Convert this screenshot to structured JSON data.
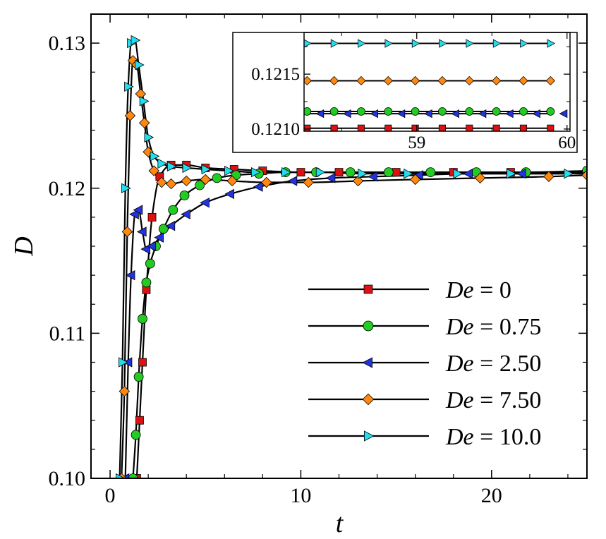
{
  "chart_data": [
    {
      "type": "line",
      "xlabel": "t",
      "ylabel": "D",
      "xlim": [
        -1,
        25
      ],
      "ylim": [
        0.1,
        0.132
      ],
      "xticks": [
        "0",
        "10",
        "20"
      ],
      "xtick_values": [
        0,
        10,
        20
      ],
      "yticks": [
        "0.10",
        "0.11",
        "0.12",
        "0.13"
      ],
      "ytick_values": [
        0.1,
        0.11,
        0.12,
        0.13
      ],
      "grid": false,
      "legend_position": "bottom-right",
      "legend": [
        {
          "prefix": "De",
          "rest": " = 0"
        },
        {
          "prefix": "De",
          "rest": " = 0.75"
        },
        {
          "prefix": "De",
          "rest": " = 2.50"
        },
        {
          "prefix": "De",
          "rest": " = 7.50"
        },
        {
          "prefix": "De",
          "rest": " = 10.0"
        }
      ],
      "series": [
        {
          "name": "De = 0",
          "marker": "square",
          "color": "#dd1111",
          "x": [
            1.4,
            1.55,
            1.7,
            1.9,
            2.2,
            2.6,
            3.2,
            4.0,
            5.0,
            6.5,
            8.0,
            10.0,
            12.0,
            15.0,
            18.0,
            21.0,
            25.0
          ],
          "y": [
            0.1,
            0.104,
            0.108,
            0.113,
            0.118,
            0.1208,
            0.1216,
            0.1216,
            0.1214,
            0.1213,
            0.1212,
            0.1211,
            0.1211,
            0.1211,
            0.1211,
            0.1211,
            0.1211
          ]
        },
        {
          "name": "De = 0.75",
          "marker": "circle",
          "color": "#22cc22",
          "x": [
            1.2,
            1.35,
            1.5,
            1.7,
            1.9,
            2.1,
            2.4,
            2.8,
            3.3,
            3.9,
            4.7,
            5.6,
            6.6,
            7.8,
            9.2,
            10.8,
            12.6,
            14.6,
            16.8,
            19.2,
            21.8,
            25.0
          ],
          "y": [
            0.1,
            0.103,
            0.107,
            0.111,
            0.1135,
            0.1148,
            0.116,
            0.1172,
            0.1185,
            0.1195,
            0.1202,
            0.1207,
            0.1209,
            0.121,
            0.1211,
            0.1211,
            0.1211,
            0.1211,
            0.1211,
            0.1211,
            0.1211,
            0.1212
          ]
        },
        {
          "name": "De = 2.50",
          "marker": "triangle-left",
          "color": "#2233dd",
          "x": [
            0.8,
            0.95,
            1.1,
            1.3,
            1.5,
            1.7,
            1.9,
            2.2,
            2.6,
            3.2,
            4.0,
            5.0,
            6.3,
            7.8,
            9.6,
            11.6,
            13.8,
            16.2,
            18.8,
            21.6,
            25.0
          ],
          "y": [
            0.1,
            0.108,
            0.114,
            0.1182,
            0.1185,
            0.117,
            0.1158,
            0.116,
            0.1166,
            0.1174,
            0.1182,
            0.119,
            0.1196,
            0.1201,
            0.1205,
            0.1207,
            0.1208,
            0.1209,
            0.121,
            0.121,
            0.121
          ]
        },
        {
          "name": "De = 7.50",
          "marker": "diamond",
          "color": "#ff8811",
          "x": [
            0.6,
            0.75,
            0.9,
            1.05,
            1.2,
            1.4,
            1.6,
            1.8,
            2.0,
            2.3,
            2.7,
            3.2,
            4.0,
            5.0,
            6.4,
            8.2,
            10.4,
            13.0,
            16.0,
            19.4,
            23.0,
            25.0
          ],
          "y": [
            0.1,
            0.106,
            0.117,
            0.125,
            0.1288,
            0.1285,
            0.1265,
            0.1245,
            0.1225,
            0.1212,
            0.1204,
            0.1203,
            0.1205,
            0.1206,
            0.1205,
            0.1204,
            0.1204,
            0.1205,
            0.1206,
            0.1207,
            0.1208,
            0.1209
          ]
        },
        {
          "name": "De = 10.0",
          "marker": "triangle-right",
          "color": "#22ddee",
          "x": [
            0.5,
            0.65,
            0.8,
            0.95,
            1.1,
            1.3,
            1.5,
            1.75,
            2.0,
            2.3,
            2.7,
            3.2,
            4.0,
            5.0,
            6.2,
            7.6,
            9.2,
            11.0,
            13.2,
            15.6,
            18.2,
            21.0,
            24.0
          ],
          "y": [
            0.1,
            0.108,
            0.12,
            0.127,
            0.13,
            0.1302,
            0.1285,
            0.126,
            0.1235,
            0.1222,
            0.1217,
            0.1215,
            0.1214,
            0.1213,
            0.1212,
            0.1211,
            0.1211,
            0.1211,
            0.121,
            0.121,
            0.121,
            0.121,
            0.121
          ]
        }
      ]
    },
    {
      "type": "line",
      "xlim": [
        58.25,
        60.02
      ],
      "ylim": [
        0.12098,
        0.12188
      ],
      "xticks": [
        "59",
        "60"
      ],
      "xtick_values": [
        59,
        60
      ],
      "yticks": [
        "0.1210",
        "0.1215"
      ],
      "ytick_values": [
        0.121,
        0.1215
      ],
      "series": [
        {
          "name": "De = 0",
          "marker": "square",
          "color": "#dd1111",
          "x": [
            58.27,
            58.45,
            58.63,
            58.81,
            58.99,
            59.17,
            59.35,
            59.53,
            59.71,
            59.89
          ],
          "y": [
            0.121007,
            0.121007,
            0.121007,
            0.121007,
            0.121007,
            0.121007,
            0.121007,
            0.121007,
            0.121007,
            0.121007
          ]
        },
        {
          "name": "De = 0.75",
          "marker": "circle",
          "color": "#22cc22",
          "x": [
            58.27,
            58.45,
            58.63,
            58.81,
            58.99,
            59.17,
            59.35,
            59.53,
            59.71,
            59.89
          ],
          "y": [
            0.12116,
            0.12116,
            0.12116,
            0.12116,
            0.12116,
            0.12116,
            0.12116,
            0.12116,
            0.12116,
            0.12116
          ]
        },
        {
          "name": "De = 2.50",
          "marker": "triangle-left",
          "color": "#2233dd",
          "x": [
            58.36,
            58.54,
            58.72,
            58.9,
            59.08,
            59.26,
            59.44,
            59.62,
            59.8,
            59.98
          ],
          "y": [
            0.12114,
            0.12114,
            0.12114,
            0.12114,
            0.12114,
            0.12114,
            0.12114,
            0.12114,
            0.12114,
            0.12114
          ]
        },
        {
          "name": "De = 7.50",
          "marker": "diamond",
          "color": "#ff8811",
          "x": [
            58.27,
            58.45,
            58.63,
            58.81,
            58.99,
            59.17,
            59.35,
            59.53,
            59.71,
            59.89
          ],
          "y": [
            0.12144,
            0.12144,
            0.12144,
            0.12144,
            0.12144,
            0.12144,
            0.12144,
            0.12144,
            0.12144,
            0.12144
          ]
        },
        {
          "name": "De = 10.0",
          "marker": "triangle-right",
          "color": "#22ddee",
          "x": [
            58.27,
            58.45,
            58.63,
            58.81,
            58.99,
            59.17,
            59.35,
            59.53,
            59.71,
            59.89
          ],
          "y": [
            0.12178,
            0.12178,
            0.12178,
            0.12178,
            0.12178,
            0.12178,
            0.12178,
            0.12178,
            0.12178,
            0.12178
          ]
        }
      ]
    }
  ]
}
